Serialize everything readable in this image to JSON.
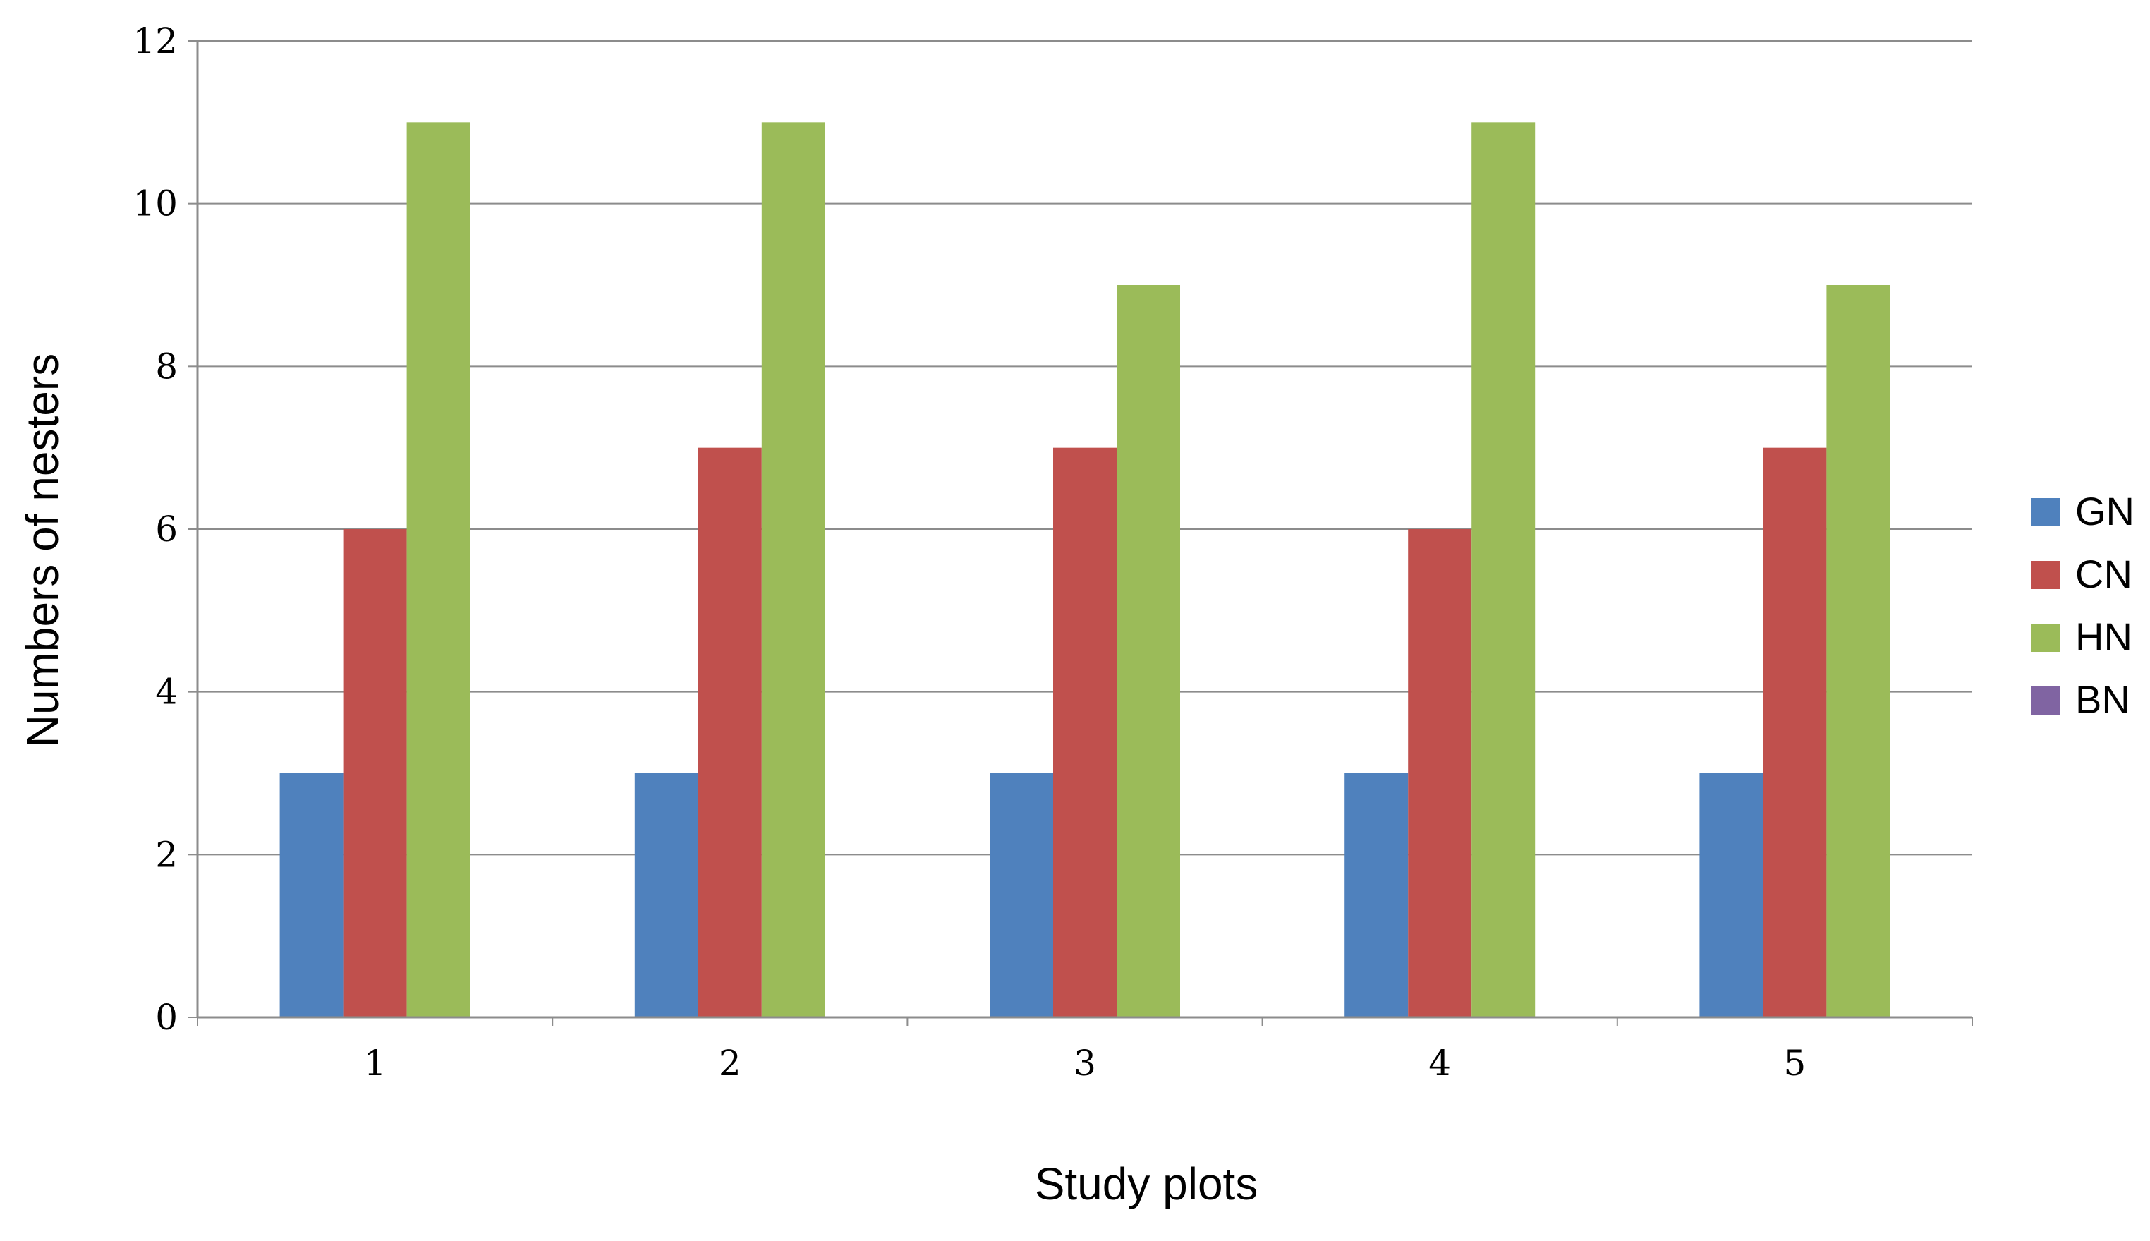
{
  "chart_data": {
    "type": "bar",
    "title": "",
    "xlabel": "Study plots",
    "ylabel": "Numbers of nesters",
    "categories": [
      "1",
      "2",
      "3",
      "4",
      "5"
    ],
    "ylim": [
      0,
      12
    ],
    "yticks": [
      0,
      2,
      4,
      6,
      8,
      10,
      12
    ],
    "grid": true,
    "legend_position": "right",
    "series": [
      {
        "name": "GN",
        "color": "#4f81bd",
        "values": [
          3,
          3,
          3,
          3,
          3
        ]
      },
      {
        "name": "CN",
        "color": "#c0504d",
        "values": [
          6,
          7,
          7,
          6,
          7
        ]
      },
      {
        "name": "HN",
        "color": "#9bbb59",
        "values": [
          11,
          11,
          9,
          11,
          9
        ]
      },
      {
        "name": "BN",
        "color": "#8064a2",
        "values": [
          0,
          0,
          0,
          0,
          0
        ]
      }
    ]
  }
}
